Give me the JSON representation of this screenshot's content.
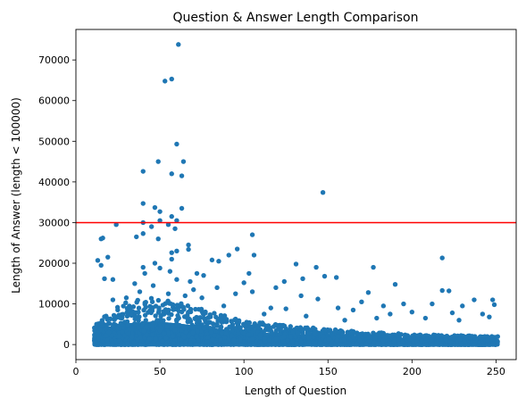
{
  "chart_data": {
    "type": "scatter",
    "title": "Question & Answer Length Comparison",
    "xlabel": "Length of Question",
    "ylabel": "Length of Answer (length < 100000)",
    "xlim": [
      0,
      262
    ],
    "ylim": [
      -3700,
      77500
    ],
    "xticks": [
      0,
      50,
      100,
      150,
      200,
      250
    ],
    "yticks": [
      0,
      10000,
      20000,
      30000,
      40000,
      50000,
      60000,
      70000
    ],
    "grid": false,
    "legend": "none",
    "point_color": "#1f77b4",
    "threshold_line": {
      "y": 30000,
      "color": "#ff0000"
    },
    "dense_band": {
      "description_of_mass": "dense cluster of points for question lengths 11-251",
      "x_range": [
        11,
        251
      ],
      "upper_envelope": [
        [
          11,
          5000
        ],
        [
          20,
          8000
        ],
        [
          30,
          10500
        ],
        [
          45,
          11500
        ],
        [
          55,
          11000
        ],
        [
          65,
          10000
        ],
        [
          80,
          8000
        ],
        [
          100,
          6000
        ],
        [
          130,
          4500
        ],
        [
          160,
          3500
        ],
        [
          200,
          2500
        ],
        [
          250,
          2000
        ]
      ]
    },
    "points": [
      [
        61,
        73800
      ],
      [
        53,
        64800
      ],
      [
        57,
        65300
      ],
      [
        60,
        49300
      ],
      [
        49,
        45000
      ],
      [
        64,
        45000
      ],
      [
        40,
        42600
      ],
      [
        57,
        42000
      ],
      [
        63,
        41500
      ],
      [
        147,
        37400
      ],
      [
        40,
        34700
      ],
      [
        47,
        33700
      ],
      [
        63,
        33500
      ],
      [
        50,
        32700
      ],
      [
        57,
        31500
      ],
      [
        60,
        30500
      ],
      [
        50,
        30500
      ],
      [
        40,
        30000
      ],
      [
        24,
        29500
      ],
      [
        45,
        29000
      ],
      [
        55,
        29500
      ],
      [
        59,
        28500
      ],
      [
        40,
        27300
      ],
      [
        36,
        26500
      ],
      [
        16,
        26200
      ],
      [
        15,
        26000
      ],
      [
        49,
        26000
      ],
      [
        105,
        27000
      ],
      [
        67,
        24500
      ],
      [
        67,
        23400
      ],
      [
        57,
        22600
      ],
      [
        60,
        23000
      ],
      [
        96,
        23500
      ],
      [
        91,
        22000
      ],
      [
        106,
        22000
      ],
      [
        13,
        20700
      ],
      [
        19,
        21500
      ],
      [
        218,
        21300
      ],
      [
        57,
        21000
      ],
      [
        81,
        20800
      ],
      [
        85,
        20500
      ],
      [
        131,
        19800
      ],
      [
        143,
        19000
      ],
      [
        177,
        19000
      ],
      [
        47,
        20000
      ],
      [
        40,
        19000
      ],
      [
        15,
        19500
      ],
      [
        50,
        18800
      ],
      [
        56,
        18000
      ],
      [
        72,
        17500
      ],
      [
        76,
        17000
      ],
      [
        103,
        17500
      ],
      [
        41,
        17500
      ],
      [
        148,
        16800
      ],
      [
        17,
        16200
      ],
      [
        22,
        16000
      ],
      [
        135,
        16200
      ],
      [
        155,
        16500
      ],
      [
        60,
        16000
      ],
      [
        68,
        15500
      ],
      [
        100,
        15200
      ],
      [
        124,
        15500
      ],
      [
        190,
        14800
      ],
      [
        35,
        15000
      ],
      [
        46,
        14500
      ],
      [
        84,
        14000
      ],
      [
        119,
        14000
      ],
      [
        218,
        13300
      ],
      [
        222,
        13200
      ],
      [
        105,
        13000
      ],
      [
        174,
        12800
      ],
      [
        38,
        13000
      ],
      [
        55,
        12500
      ],
      [
        95,
        12500
      ],
      [
        134,
        12000
      ],
      [
        30,
        11500
      ],
      [
        22,
        11000
      ],
      [
        144,
        11200
      ],
      [
        237,
        11000
      ],
      [
        248,
        11000
      ],
      [
        170,
        10500
      ],
      [
        195,
        10000
      ],
      [
        212,
        10000
      ],
      [
        230,
        9500
      ],
      [
        156,
        9000
      ],
      [
        183,
        9500
      ],
      [
        249,
        9800
      ],
      [
        116,
        9000
      ],
      [
        165,
        8500
      ],
      [
        200,
        8000
      ],
      [
        224,
        7800
      ],
      [
        242,
        7500
      ],
      [
        137,
        7000
      ],
      [
        187,
        7500
      ],
      [
        208,
        6500
      ],
      [
        246,
        6800
      ],
      [
        228,
        6000
      ],
      [
        179,
        6500
      ],
      [
        160,
        6000
      ],
      [
        112,
        7500
      ],
      [
        125,
        8800
      ],
      [
        88,
        9500
      ],
      [
        75,
        11500
      ],
      [
        70,
        13500
      ],
      [
        65,
        12000
      ]
    ]
  }
}
